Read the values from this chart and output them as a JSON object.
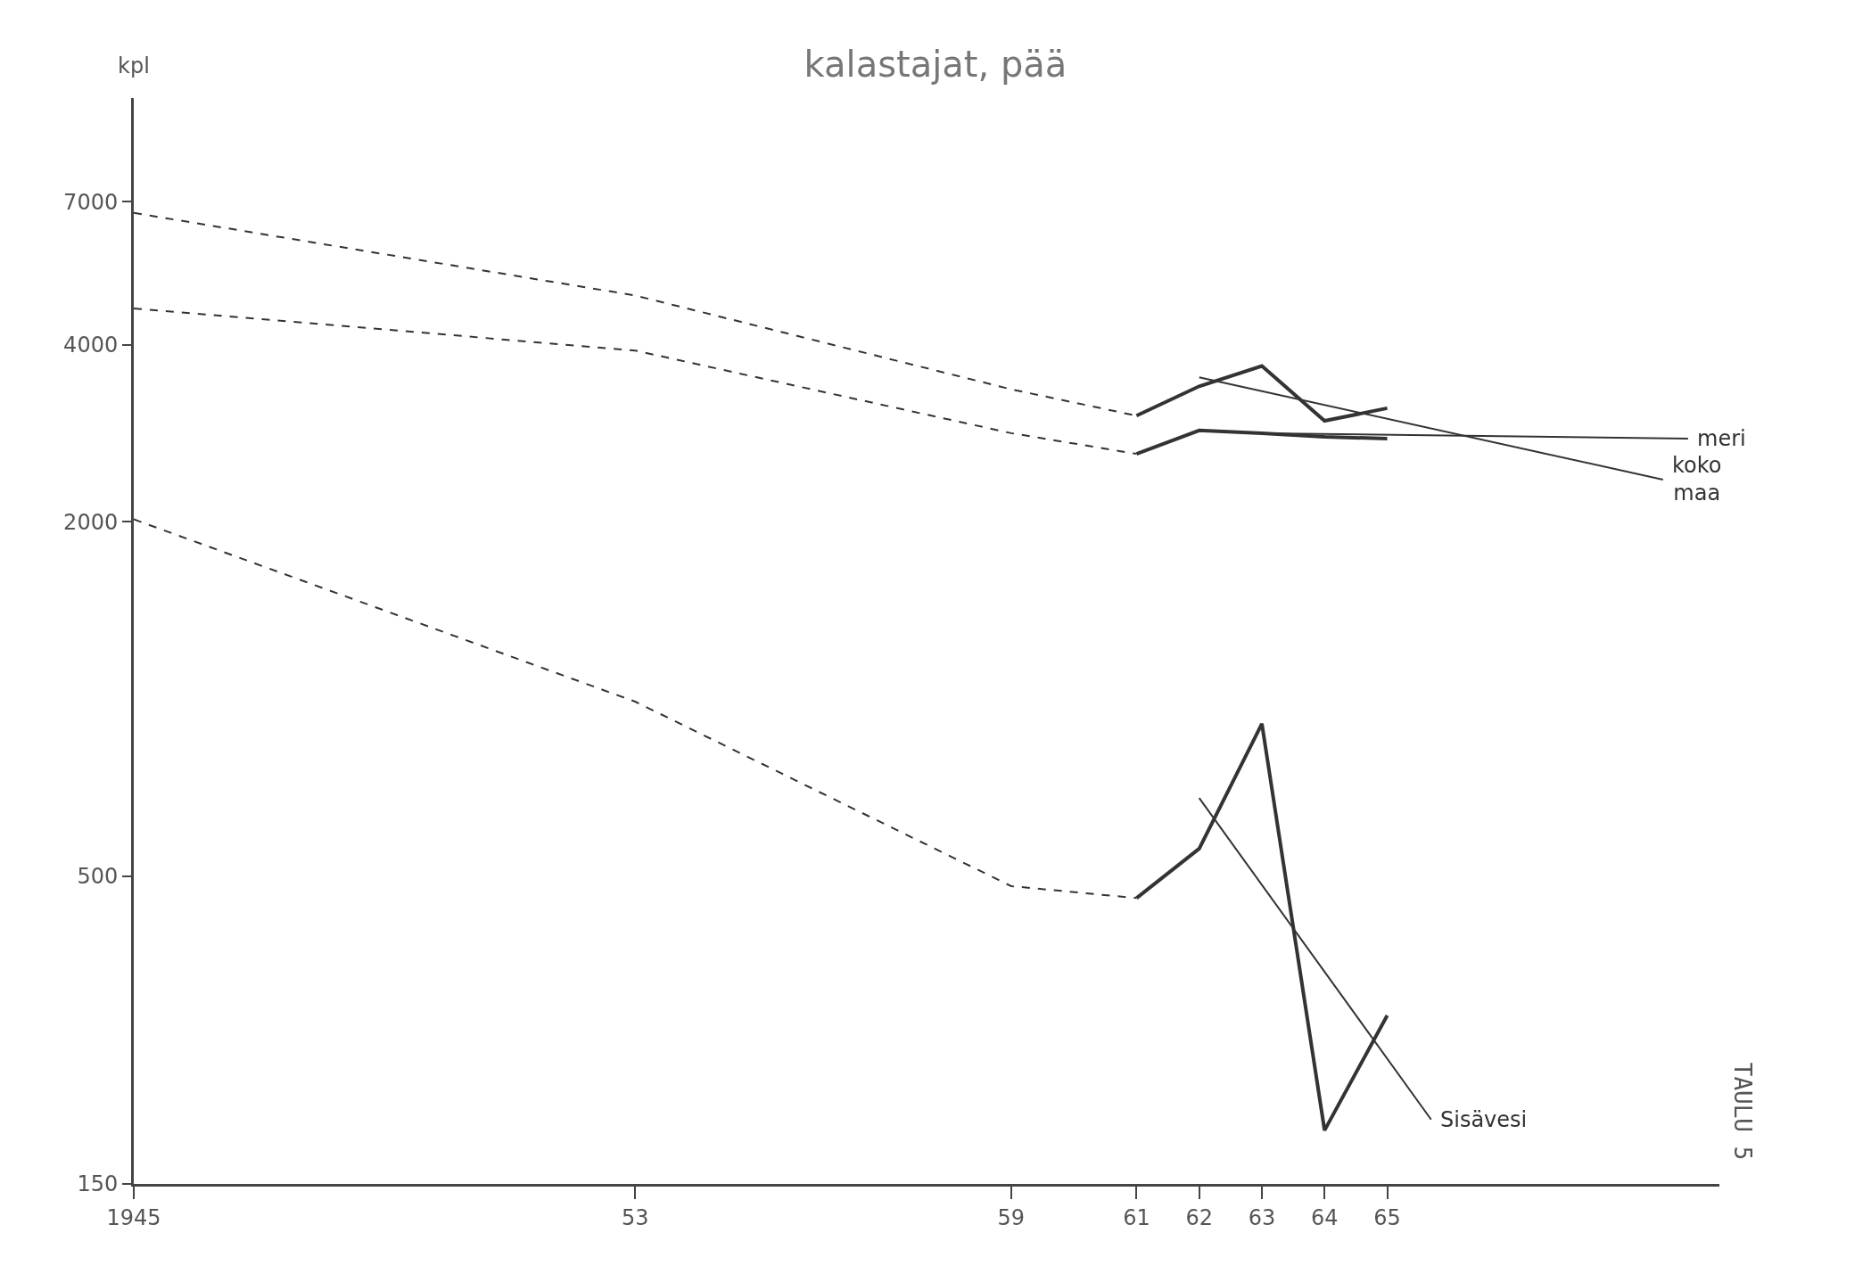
{
  "chart_data": {
    "type": "line",
    "title": "kalastajat, pää",
    "ylabel": "kpl",
    "log": "y",
    "grid": false,
    "legend": false,
    "marker": "none",
    "xlim": [
      1945,
      1970.3
    ],
    "xticks": [
      {
        "value": 1945,
        "label": "1945"
      },
      {
        "value": 1953,
        "label": "53"
      },
      {
        "value": 1959,
        "label": "59"
      },
      {
        "value": 1961,
        "label": "61"
      },
      {
        "value": 1962,
        "label": "62"
      },
      {
        "value": 1963,
        "label": "63"
      },
      {
        "value": 1964,
        "label": "64"
      },
      {
        "value": 1965,
        "label": "65"
      }
    ],
    "ylim": [
      150,
      10500
    ],
    "yticks": [
      150,
      500,
      2000,
      4000,
      7000
    ],
    "series": [
      {
        "color": "#333333",
        "line_style": "dashed",
        "x": [
          1945,
          1953,
          1959,
          1961
        ],
        "values": [
          6700,
          4850,
          3360,
          3030
        ]
      },
      {
        "color": "#333333",
        "line_style": "solid",
        "x": [
          1961,
          1962,
          1963,
          1964,
          1965
        ],
        "values": [
          3030,
          3400,
          3680,
          2970,
          3120
        ]
      },
      {
        "name": "koko maa",
        "color": "#333333",
        "line_style": "solid",
        "x": [
          1962,
          1969.4
        ],
        "values": [
          3520,
          2360
        ]
      },
      {
        "color": "#333333",
        "line_style": "dashed",
        "x": [
          1945,
          1953,
          1959,
          1961
        ],
        "values": [
          4610,
          3910,
          2830,
          2610
        ]
      },
      {
        "color": "#333333",
        "line_style": "solid",
        "x": [
          1961,
          1962,
          1963,
          1964,
          1965
        ],
        "values": [
          2610,
          2860,
          2830,
          2790,
          2770
        ]
      },
      {
        "name": "meri",
        "color": "#333333",
        "line_style": "solid",
        "x": [
          1963,
          1969.8
        ],
        "values": [
          2830,
          2770
        ]
      },
      {
        "color": "#333333",
        "line_style": "dashed",
        "x": [
          1945,
          1953,
          1959,
          1961
        ],
        "values": [
          2020,
          990,
          481,
          459
        ]
      },
      {
        "color": "#333333",
        "line_style": "solid",
        "x": [
          1961,
          1962,
          1963,
          1964,
          1965
        ],
        "values": [
          459,
          557,
          908,
          185,
          290
        ]
      },
      {
        "name": "Sisävesi",
        "color": "#333333",
        "line_style": "solid",
        "x": [
          1962,
          1965.7
        ],
        "values": [
          679,
          193
        ]
      }
    ],
    "annotations": [
      "TAULU 5"
    ]
  }
}
